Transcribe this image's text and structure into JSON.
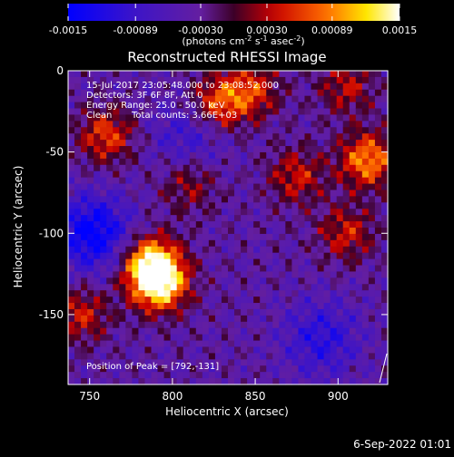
{
  "colorbar": {
    "ticks": [
      "-0.0015",
      "-0.00089",
      "-0.00030",
      "0.00030",
      "0.00089",
      "0.0015"
    ],
    "tick_values": [
      -0.0015,
      -0.00089,
      -0.0003,
      0.0003,
      0.00089,
      0.0015
    ],
    "units_label": "(photons cm",
    "units_exp1": "-2",
    "units_mid": " s",
    "units_exp2": "-1",
    "units_end": " asec",
    "units_exp3": "-2",
    "units_close": ")"
  },
  "chart_data": {
    "type": "heatmap",
    "title": "Reconstructed RHESSI Image",
    "xlabel": "Heliocentric X (arcsec)",
    "ylabel": "Heliocentric Y (arcsec)",
    "xlim": [
      737,
      930
    ],
    "ylim": [
      -193,
      0
    ],
    "x_ticks": [
      750,
      800,
      850,
      900
    ],
    "y_ticks": [
      0,
      -50,
      -100,
      -150
    ],
    "value_range": [
      -0.0015,
      0.0015
    ],
    "colormap": "blue-purple-red-yellow-white",
    "hotspots": [
      {
        "x": 792,
        "y": -131,
        "amp": 1.0
      },
      {
        "x": 787,
        "y": -118,
        "amp": 0.85
      },
      {
        "x": 760,
        "y": -40,
        "amp": 0.55
      },
      {
        "x": 828,
        "y": -20,
        "amp": 0.6
      },
      {
        "x": 848,
        "y": -12,
        "amp": 0.5
      },
      {
        "x": 875,
        "y": -65,
        "amp": 0.45
      },
      {
        "x": 918,
        "y": -55,
        "amp": 0.75
      },
      {
        "x": 905,
        "y": -10,
        "amp": 0.4
      },
      {
        "x": 905,
        "y": -100,
        "amp": 0.45
      },
      {
        "x": 745,
        "y": -150,
        "amp": 0.45
      },
      {
        "x": 810,
        "y": -70,
        "amp": 0.35
      }
    ],
    "coldspots": [
      {
        "x": 752,
        "y": -100,
        "amp": 0.65
      },
      {
        "x": 890,
        "y": -165,
        "amp": 0.4
      },
      {
        "x": 810,
        "y": -40,
        "amp": 0.3
      }
    ],
    "peak": [
      792,
      -131
    ]
  },
  "annotations": {
    "time_range": "15-Jul-2017 23:05:48.000 to 23:08:52.000",
    "detectors": "Detectors: 3F 6F 8F, Att 0",
    "energy": "Energy Range: 25.0 - 50.0 keV",
    "method": "Clean",
    "counts": "Total counts: 3.66E+03",
    "peak_label": "Position of Peak = [792,-131]"
  },
  "footer": {
    "date": "6-Sep-2022 01:01"
  }
}
